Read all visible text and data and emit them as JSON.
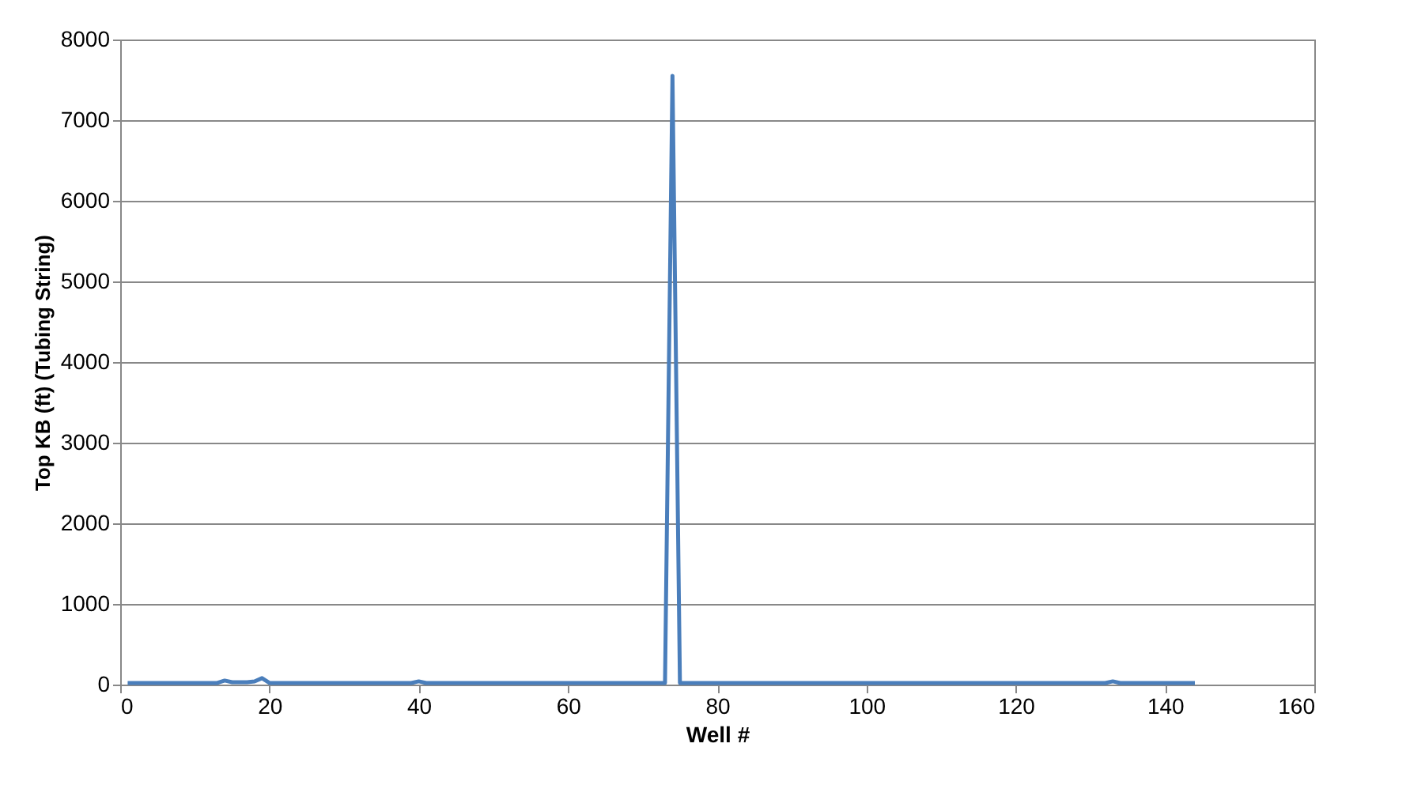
{
  "chart_data": {
    "type": "line",
    "xlabel": "Well #",
    "ylabel": "Top KB (ft) (Tubing String)",
    "series": [
      {
        "color": "#4a7ebb",
        "x": [
          1,
          13,
          14,
          15,
          17,
          18,
          19,
          20,
          39,
          40,
          41,
          73,
          74,
          75,
          132,
          133,
          134,
          144
        ],
        "values": [
          20,
          20,
          50,
          30,
          30,
          40,
          80,
          20,
          20,
          40,
          20,
          20,
          7550,
          20,
          20,
          40,
          20,
          20
        ]
      }
    ],
    "xlim": [
      0,
      160
    ],
    "xticks": [
      0,
      20,
      40,
      60,
      80,
      100,
      120,
      140,
      160
    ],
    "ylim": [
      0,
      8000
    ],
    "yticks": [
      0,
      1000,
      2000,
      3000,
      4000,
      5000,
      6000,
      7000,
      8000
    ],
    "grid": "y",
    "legend": false,
    "marker": "none",
    "line_style": "solid"
  }
}
